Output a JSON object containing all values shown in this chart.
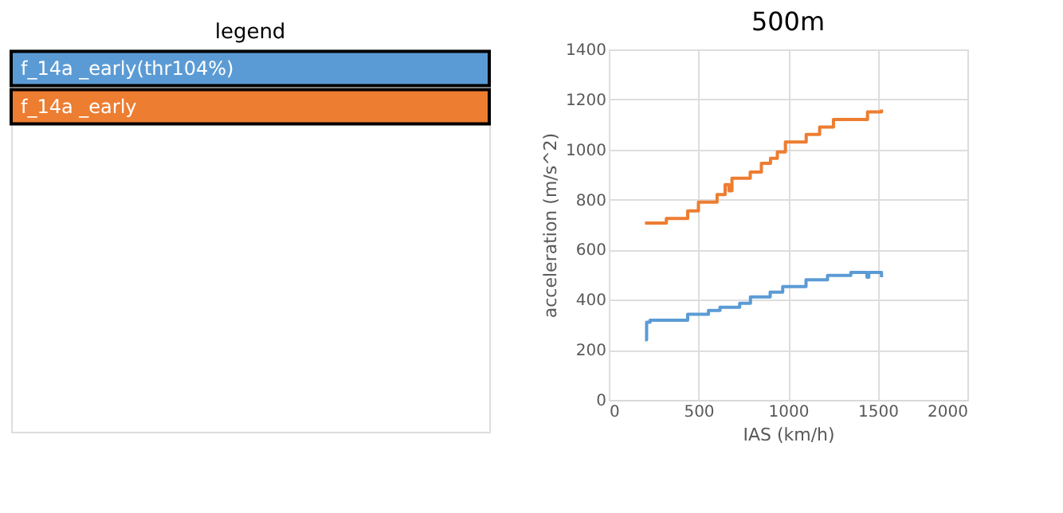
{
  "chart_data": {
    "type": "step",
    "title": "500m",
    "legend_title": "legend",
    "xlabel": "IAS (km/h)",
    "ylabel": "acceleration (m/s^2)",
    "xlim": [
      0,
      2000
    ],
    "ylim": [
      0,
      1400
    ],
    "xticks": [
      0,
      500,
      1000,
      1500,
      2000
    ],
    "yticks": [
      0,
      200,
      400,
      600,
      800,
      1000,
      1200,
      1400
    ],
    "grid": true,
    "legend": "left",
    "series": [
      {
        "name": "f_14a _early(thr104%)",
        "color": "#5b9bd5",
        "x": [
          202,
          211,
          230,
          440,
          556,
          620,
          730,
          790,
          900,
          970,
          1100,
          1220,
          1350,
          1440,
          1450,
          1521
        ],
        "values": [
          240,
          310,
          318,
          342,
          357,
          370,
          386,
          411,
          430,
          453,
          480,
          497,
          509,
          490,
          509,
          490
        ]
      },
      {
        "name": "f_14a _early",
        "color": "#ed7d31",
        "x": [
          202,
          321,
          440,
          500,
          604,
          649,
          670,
          687,
          789,
          851,
          902,
          940,
          985,
          1101,
          1176,
          1253,
          1443,
          1521
        ],
        "values": [
          706,
          725,
          755,
          790,
          820,
          860,
          835,
          885,
          910,
          945,
          965,
          990,
          1030,
          1060,
          1090,
          1120,
          1150,
          1160
        ]
      }
    ]
  }
}
